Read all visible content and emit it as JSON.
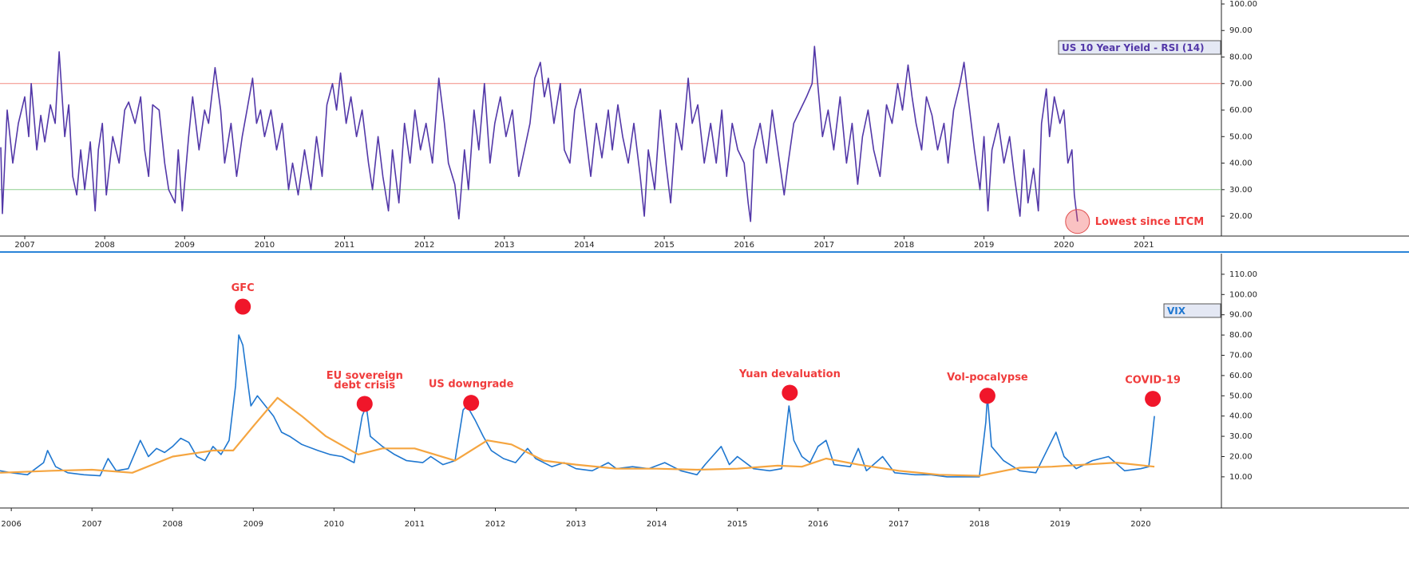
{
  "chart_data": [
    {
      "type": "line",
      "series": [
        {
          "name": "US 10 Year Yield - RSI (14)",
          "color": "#5338a8",
          "x": [
            2006.7,
            2006.72,
            2006.78,
            2006.85,
            2006.92,
            2007.0,
            2007.05,
            2007.08,
            2007.15,
            2007.2,
            2007.25,
            2007.32,
            2007.38,
            2007.43,
            2007.5,
            2007.55,
            2007.6,
            2007.65,
            2007.7,
            2007.75,
            2007.82,
            2007.88,
            2007.92,
            2007.97,
            2008.02,
            2008.1,
            2008.18,
            2008.25,
            2008.3,
            2008.38,
            2008.45,
            2008.5,
            2008.55,
            2008.6,
            2008.68,
            2008.75,
            2008.8,
            2008.88,
            2008.92,
            2008.97,
            2009.05,
            2009.1,
            2009.18,
            2009.25,
            2009.3,
            2009.38,
            2009.45,
            2009.5,
            2009.58,
            2009.65,
            2009.72,
            2009.78,
            2009.85,
            2009.9,
            2009.95,
            2010.0,
            2010.08,
            2010.15,
            2010.22,
            2010.3,
            2010.35,
            2010.42,
            2010.5,
            2010.58,
            2010.65,
            2010.72,
            2010.78,
            2010.85,
            2010.9,
            2010.95,
            2011.02,
            2011.08,
            2011.15,
            2011.22,
            2011.3,
            2011.35,
            2011.42,
            2011.48,
            2011.55,
            2011.6,
            2011.68,
            2011.75,
            2011.82,
            2011.88,
            2011.95,
            2012.02,
            2012.1,
            2012.18,
            2012.25,
            2012.3,
            2012.38,
            2012.43,
            2012.5,
            2012.55,
            2012.62,
            2012.68,
            2012.75,
            2012.82,
            2012.88,
            2012.95,
            2013.02,
            2013.1,
            2013.18,
            2013.25,
            2013.32,
            2013.38,
            2013.45,
            2013.5,
            2013.55,
            2013.62,
            2013.7,
            2013.75,
            2013.82,
            2013.88,
            2013.95,
            2014.02,
            2014.08,
            2014.15,
            2014.22,
            2014.3,
            2014.35,
            2014.42,
            2014.48,
            2014.55,
            2014.62,
            2014.7,
            2014.75,
            2014.8,
            2014.88,
            2014.95,
            2015.02,
            2015.08,
            2015.15,
            2015.22,
            2015.3,
            2015.35,
            2015.42,
            2015.5,
            2015.58,
            2015.65,
            2015.72,
            2015.78,
            2015.85,
            2015.92,
            2016.0,
            2016.05,
            2016.08,
            2016.12,
            2016.2,
            2016.28,
            2016.35,
            2016.42,
            2016.5,
            2016.55,
            2016.62,
            2016.7,
            2016.78,
            2016.85,
            2016.88,
            2016.92,
            2016.98,
            2017.05,
            2017.12,
            2017.2,
            2017.28,
            2017.35,
            2017.42,
            2017.48,
            2017.55,
            2017.62,
            2017.7,
            2017.78,
            2017.85,
            2017.92,
            2017.98,
            2018.05,
            2018.1,
            2018.15,
            2018.22,
            2018.28,
            2018.35,
            2018.42,
            2018.5,
            2018.55,
            2018.62,
            2018.7,
            2018.75,
            2018.8,
            2018.88,
            2018.95,
            2019.0,
            2019.05,
            2019.1,
            2019.18,
            2019.25,
            2019.32,
            2019.38,
            2019.45,
            2019.5,
            2019.55,
            2019.62,
            2019.68,
            2019.72,
            2019.78,
            2019.82,
            2019.88,
            2019.95,
            2020.0,
            2020.05,
            2020.1,
            2020.13,
            2020.17
          ],
          "values": [
            46,
            21,
            60,
            40,
            55,
            65,
            50,
            70,
            45,
            58,
            48,
            62,
            55,
            82,
            50,
            62,
            35,
            28,
            45,
            30,
            48,
            22,
            45,
            55,
            28,
            50,
            40,
            60,
            63,
            55,
            65,
            45,
            35,
            62,
            60,
            40,
            30,
            25,
            45,
            22,
            50,
            65,
            45,
            60,
            55,
            76,
            60,
            40,
            55,
            35,
            50,
            60,
            72,
            55,
            60,
            50,
            60,
            45,
            55,
            30,
            40,
            28,
            45,
            30,
            50,
            35,
            62,
            70,
            60,
            74,
            55,
            65,
            50,
            60,
            40,
            30,
            50,
            35,
            22,
            45,
            25,
            55,
            40,
            60,
            45,
            55,
            40,
            72,
            55,
            40,
            32,
            19,
            45,
            30,
            60,
            45,
            70,
            40,
            55,
            65,
            50,
            60,
            35,
            45,
            55,
            72,
            78,
            65,
            72,
            55,
            70,
            45,
            40,
            60,
            68,
            50,
            35,
            55,
            42,
            60,
            45,
            62,
            50,
            40,
            55,
            35,
            20,
            45,
            30,
            60,
            40,
            25,
            55,
            45,
            72,
            55,
            62,
            40,
            55,
            40,
            60,
            35,
            55,
            45,
            40,
            25,
            18,
            45,
            55,
            40,
            60,
            45,
            28,
            40,
            55,
            60,
            65,
            70,
            84,
            70,
            50,
            60,
            45,
            65,
            40,
            55,
            32,
            50,
            60,
            45,
            35,
            62,
            55,
            70,
            60,
            77,
            65,
            55,
            45,
            65,
            58,
            45,
            55,
            40,
            60,
            70,
            78,
            65,
            45,
            30,
            50,
            22,
            45,
            55,
            40,
            50,
            35,
            20,
            45,
            25,
            38,
            22,
            55,
            68,
            50,
            65,
            55,
            60,
            40,
            45,
            28,
            18
          ]
        }
      ],
      "hlines": [
        {
          "value": 70,
          "color": "#f28b82"
        },
        {
          "value": 30,
          "color": "#8fcf8f"
        }
      ],
      "annotations": [
        {
          "text": "Lowest since LTCM",
          "x": 2020.17,
          "y": 18
        }
      ],
      "xlim": [
        2006.69,
        2021.97
      ],
      "xticks": [
        2007,
        2008,
        2009,
        2010,
        2011,
        2012,
        2013,
        2014,
        2015,
        2016,
        2017,
        2018,
        2019,
        2020,
        2021
      ],
      "ylim": [
        12.5,
        101.5
      ],
      "yticks": [
        {
          "value": 20,
          "label": "20.00"
        },
        {
          "value": 30,
          "label": "30.00"
        },
        {
          "value": 40,
          "label": "40.00"
        },
        {
          "value": 50,
          "label": "50.00"
        },
        {
          "value": 60,
          "label": "60.00"
        },
        {
          "value": 70,
          "label": "70.00"
        },
        {
          "value": 80,
          "label": "80.00"
        },
        {
          "value": 90,
          "label": "90.00"
        },
        {
          "value": 100,
          "label": "100.00"
        }
      ]
    },
    {
      "type": "line",
      "series": [
        {
          "name": "VIX",
          "color": "#1f77d0",
          "x": [
            2005.86,
            2006.0,
            2006.2,
            2006.4,
            2006.45,
            2006.55,
            2006.7,
            2006.9,
            2007.1,
            2007.2,
            2007.3,
            2007.45,
            2007.6,
            2007.7,
            2007.8,
            2007.9,
            2008.0,
            2008.1,
            2008.2,
            2008.3,
            2008.4,
            2008.5,
            2008.6,
            2008.7,
            2008.78,
            2008.82,
            2008.87,
            2008.92,
            2008.97,
            2009.05,
            2009.15,
            2009.25,
            2009.35,
            2009.45,
            2009.6,
            2009.8,
            2009.95,
            2010.1,
            2010.25,
            2010.35,
            2010.4,
            2010.45,
            2010.6,
            2010.75,
            2010.9,
            2011.1,
            2011.2,
            2011.35,
            2011.5,
            2011.6,
            2011.65,
            2011.75,
            2011.85,
            2011.95,
            2012.1,
            2012.25,
            2012.4,
            2012.5,
            2012.7,
            2012.85,
            2013.0,
            2013.2,
            2013.4,
            2013.5,
            2013.7,
            2013.9,
            2014.1,
            2014.3,
            2014.5,
            2014.6,
            2014.8,
            2014.9,
            2015.0,
            2015.2,
            2015.4,
            2015.55,
            2015.64,
            2015.7,
            2015.8,
            2015.9,
            2016.0,
            2016.1,
            2016.2,
            2016.4,
            2016.5,
            2016.6,
            2016.8,
            2016.95,
            2017.2,
            2017.4,
            2017.6,
            2017.8,
            2018.0,
            2018.08,
            2018.1,
            2018.15,
            2018.3,
            2018.5,
            2018.7,
            2018.85,
            2018.95,
            2019.05,
            2019.2,
            2019.4,
            2019.6,
            2019.8,
            2020.0,
            2020.1,
            2020.13,
            2020.17
          ],
          "values": [
            13,
            12,
            11,
            17,
            23,
            15,
            12,
            11,
            10.5,
            19,
            13,
            14,
            28,
            20,
            24,
            22,
            25,
            29,
            27,
            20,
            18,
            25,
            21,
            28,
            55,
            80,
            75,
            60,
            45,
            50,
            45,
            40,
            32,
            30,
            26,
            23,
            21,
            20,
            17,
            40,
            45,
            30,
            25,
            21,
            18,
            17,
            20,
            16,
            18,
            43,
            45,
            38,
            30,
            23,
            19,
            17,
            24,
            19,
            15,
            17,
            14,
            13,
            17,
            14,
            15,
            14,
            17,
            13,
            11,
            16,
            25,
            16,
            20,
            14,
            13,
            14,
            45,
            28,
            20,
            17,
            25,
            28,
            16,
            15,
            24,
            13,
            20,
            12,
            11,
            11,
            10,
            10,
            10,
            37,
            50,
            25,
            18,
            13,
            12,
            24,
            32,
            20,
            14,
            18,
            20,
            13,
            14,
            15,
            25,
            40
          ]
        },
        {
          "color": "#f5a540",
          "x": [
            2005.86,
            2006.5,
            2007.0,
            2007.5,
            2008.0,
            2008.5,
            2008.75,
            2009.0,
            2009.3,
            2009.6,
            2009.9,
            2010.3,
            2010.6,
            2011.0,
            2011.5,
            2011.9,
            2012.2,
            2012.6,
            2013.0,
            2013.5,
            2014.0,
            2014.5,
            2015.0,
            2015.5,
            2015.8,
            2016.1,
            2016.5,
            2017.0,
            2017.5,
            2018.0,
            2018.5,
            2018.9,
            2019.3,
            2019.7,
            2020.17
          ],
          "values": [
            12,
            13,
            13.5,
            12,
            20,
            23,
            23,
            35,
            49,
            40,
            30,
            21,
            24,
            24,
            18,
            28,
            26,
            18,
            16,
            14,
            14,
            13.5,
            14,
            15.5,
            15,
            19,
            16,
            13,
            11,
            10.5,
            14.5,
            15,
            16,
            17,
            15
          ]
        }
      ],
      "annotations": [
        {
          "lines": [
            "GFC"
          ],
          "x": 2008.87,
          "y": 94
        },
        {
          "lines": [
            "EU sovereign",
            "debt crisis"
          ],
          "x": 2010.38,
          "y": 46
        },
        {
          "lines": [
            "US downgrade"
          ],
          "x": 2011.7,
          "y": 46.5
        },
        {
          "lines": [
            "Yuan devaluation"
          ],
          "x": 2015.65,
          "y": 51.5
        },
        {
          "lines": [
            "Vol-pocalypse"
          ],
          "x": 2018.1,
          "y": 50
        },
        {
          "lines": [
            "COVID-19"
          ],
          "x": 2020.15,
          "y": 48.5
        }
      ],
      "xlim": [
        2005.86,
        2021.0
      ],
      "xticks": [
        2006,
        2007,
        2008,
        2009,
        2010,
        2011,
        2012,
        2013,
        2014,
        2015,
        2016,
        2017,
        2018,
        2019,
        2020
      ],
      "ylim": [
        -5.4,
        120.2
      ],
      "yticks": [
        {
          "value": 10,
          "label": "10.00"
        },
        {
          "value": 20,
          "label": "20.00"
        },
        {
          "value": 30,
          "label": "30.00"
        },
        {
          "value": 40,
          "label": "40.00"
        },
        {
          "value": 50,
          "label": "50.00"
        },
        {
          "value": 60,
          "label": "60.00"
        },
        {
          "value": 70,
          "label": "70.00"
        },
        {
          "value": 80,
          "label": "80.00"
        },
        {
          "value": 90,
          "label": "90.00"
        },
        {
          "value": 100,
          "label": "100.00"
        },
        {
          "value": 110,
          "label": "110.00"
        }
      ]
    }
  ]
}
